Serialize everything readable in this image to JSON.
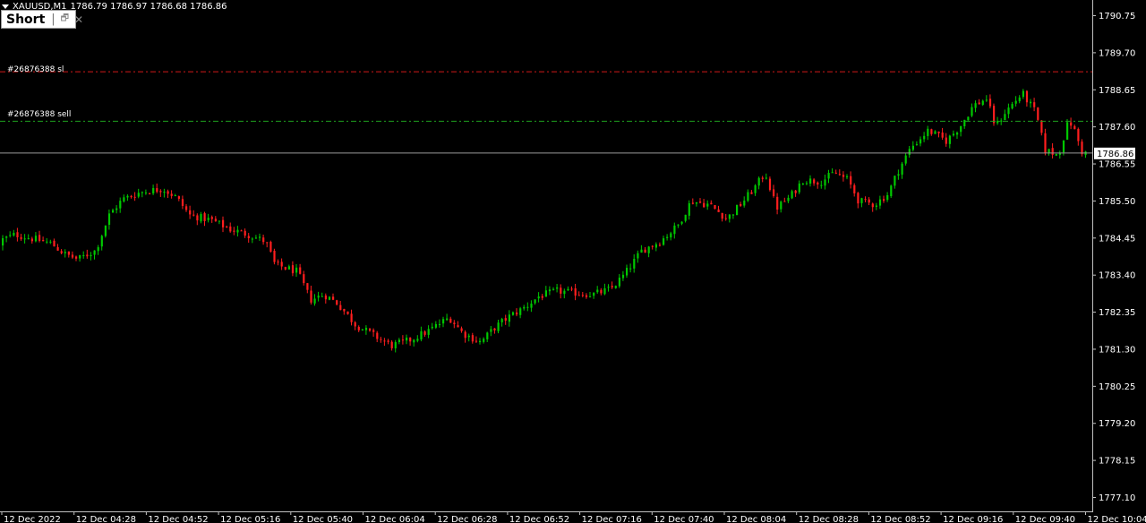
{
  "header": {
    "symbol": "XAUUSD,M1",
    "ohlc": "1786.79 1786.97 1786.68 1786.86"
  },
  "object_box": {
    "label": "Short",
    "separator": "|",
    "restore_icon": "restore-icon",
    "close_icon": "close-icon"
  },
  "order_lines": {
    "sl_label": "#26876388 sl",
    "sl_price": 1789.16,
    "sell_label": "#26876388 sell",
    "sell_price": 1787.76,
    "sl_color": "#d01818",
    "sell_color": "#1ea01e"
  },
  "current_price": {
    "value": 1786.86,
    "label": "1786.86"
  },
  "colors": {
    "background": "#000000",
    "bull": "#00c800",
    "bear": "#ff1e1e",
    "axis": "#c0c0c0"
  },
  "chart_data": {
    "type": "candlestick",
    "symbol": "XAUUSD",
    "timeframe": "M1",
    "ylim": [
      1776.6,
      1791.0
    ],
    "y_ticks": [
      "1790.75",
      "1789.70",
      "1788.65",
      "1787.60",
      "1786.55",
      "1785.50",
      "1784.45",
      "1783.40",
      "1782.35",
      "1781.30",
      "1780.25",
      "1779.20",
      "1778.15",
      "1777.10"
    ],
    "y_tick_values": [
      1790.75,
      1789.7,
      1788.65,
      1787.6,
      1786.55,
      1785.5,
      1784.45,
      1783.4,
      1782.35,
      1781.3,
      1780.25,
      1779.2,
      1778.15,
      1777.1
    ],
    "x_ticks": [
      "12 Dec 2022",
      "12 Dec 04:28",
      "12 Dec 04:52",
      "12 Dec 05:16",
      "12 Dec 05:40",
      "12 Dec 06:04",
      "12 Dec 06:28",
      "12 Dec 06:52",
      "12 Dec 07:16",
      "12 Dec 07:40",
      "12 Dec 08:04",
      "12 Dec 08:28",
      "12 Dec 08:52",
      "12 Dec 09:16",
      "12 Dec 09:40",
      "12 Dec 10:04"
    ],
    "price_path": [
      [
        0,
        1784.25
      ],
      [
        5,
        1784.4
      ],
      [
        20,
        1784.55
      ],
      [
        45,
        1784.4
      ],
      [
        60,
        1784.3
      ],
      [
        75,
        1784.0
      ],
      [
        90,
        1783.85
      ],
      [
        110,
        1784.1
      ],
      [
        125,
        1785.1
      ],
      [
        140,
        1785.55
      ],
      [
        160,
        1785.75
      ],
      [
        185,
        1785.85
      ],
      [
        200,
        1785.6
      ],
      [
        215,
        1785.1
      ],
      [
        240,
        1784.95
      ],
      [
        260,
        1784.7
      ],
      [
        280,
        1784.55
      ],
      [
        300,
        1784.35
      ],
      [
        310,
        1783.7
      ],
      [
        335,
        1783.5
      ],
      [
        350,
        1782.7
      ],
      [
        365,
        1782.85
      ],
      [
        380,
        1782.6
      ],
      [
        400,
        1782.0
      ],
      [
        420,
        1781.7
      ],
      [
        440,
        1781.4
      ],
      [
        460,
        1781.55
      ],
      [
        480,
        1781.8
      ],
      [
        505,
        1782.2
      ],
      [
        520,
        1781.75
      ],
      [
        540,
        1781.5
      ],
      [
        555,
        1781.9
      ],
      [
        570,
        1782.2
      ],
      [
        590,
        1782.5
      ],
      [
        605,
        1782.8
      ],
      [
        625,
        1782.95
      ],
      [
        645,
        1782.9
      ],
      [
        665,
        1782.85
      ],
      [
        685,
        1783.0
      ],
      [
        700,
        1783.4
      ],
      [
        720,
        1784.1
      ],
      [
        740,
        1784.35
      ],
      [
        760,
        1784.8
      ],
      [
        775,
        1785.5
      ],
      [
        795,
        1785.4
      ],
      [
        815,
        1785.0
      ],
      [
        830,
        1785.4
      ],
      [
        845,
        1785.85
      ],
      [
        858,
        1786.3
      ],
      [
        870,
        1785.3
      ],
      [
        885,
        1785.6
      ],
      [
        900,
        1786.1
      ],
      [
        920,
        1786.05
      ],
      [
        935,
        1786.3
      ],
      [
        950,
        1786.1
      ],
      [
        962,
        1785.5
      ],
      [
        980,
        1785.4
      ],
      [
        995,
        1785.7
      ],
      [
        1005,
        1786.3
      ],
      [
        1020,
        1787.0
      ],
      [
        1040,
        1787.5
      ],
      [
        1060,
        1787.2
      ],
      [
        1075,
        1787.6
      ],
      [
        1090,
        1788.2
      ],
      [
        1105,
        1788.4
      ],
      [
        1115,
        1787.6
      ],
      [
        1125,
        1788.0
      ],
      [
        1145,
        1788.55
      ],
      [
        1160,
        1788.0
      ],
      [
        1170,
        1786.95
      ],
      [
        1185,
        1786.8
      ],
      [
        1197,
        1787.8
      ],
      [
        1203,
        1787.5
      ],
      [
        1212,
        1786.86
      ]
    ]
  }
}
